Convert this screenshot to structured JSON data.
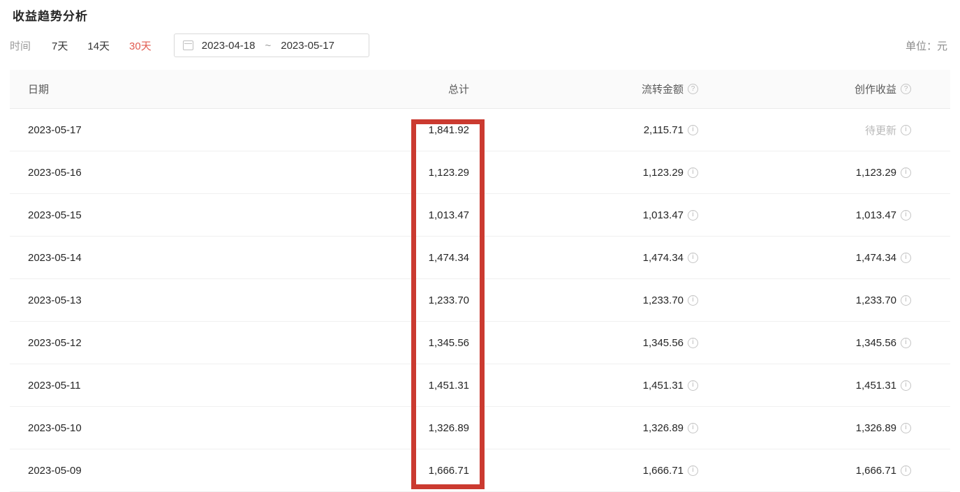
{
  "page": {
    "title": "收益趋势分析",
    "unit_label": "单位：元"
  },
  "filters": {
    "label": "时间",
    "tabs": [
      {
        "label": "7天",
        "active": false
      },
      {
        "label": "14天",
        "active": false
      },
      {
        "label": "30天",
        "active": true
      }
    ],
    "date_range": {
      "start": "2023-04-18",
      "separator": "~",
      "end": "2023-05-17"
    }
  },
  "table": {
    "columns": [
      {
        "label": "日期"
      },
      {
        "label": "总计"
      },
      {
        "label": "流转金额",
        "help": true
      },
      {
        "label": "创作收益",
        "help": true
      }
    ],
    "rows": [
      {
        "date": "2023-05-17",
        "total": "1,841.92",
        "transfer": "2,115.71",
        "creation": "待更新",
        "creation_pending": true
      },
      {
        "date": "2023-05-16",
        "total": "1,123.29",
        "transfer": "1,123.29",
        "creation": "1,123.29"
      },
      {
        "date": "2023-05-15",
        "total": "1,013.47",
        "transfer": "1,013.47",
        "creation": "1,013.47"
      },
      {
        "date": "2023-05-14",
        "total": "1,474.34",
        "transfer": "1,474.34",
        "creation": "1,474.34"
      },
      {
        "date": "2023-05-13",
        "total": "1,233.70",
        "transfer": "1,233.70",
        "creation": "1,233.70"
      },
      {
        "date": "2023-05-12",
        "total": "1,345.56",
        "transfer": "1,345.56",
        "creation": "1,345.56"
      },
      {
        "date": "2023-05-11",
        "total": "1,451.31",
        "transfer": "1,451.31",
        "creation": "1,451.31"
      },
      {
        "date": "2023-05-10",
        "total": "1,326.89",
        "transfer": "1,326.89",
        "creation": "1,326.89"
      },
      {
        "date": "2023-05-09",
        "total": "1,666.71",
        "transfer": "1,666.71",
        "creation": "1,666.71"
      }
    ]
  },
  "icons": {
    "help_glyph": "?",
    "info_glyph": "i"
  },
  "annotation": {
    "type": "highlight-box",
    "highlighted_column": "总计",
    "color": "#cb3a30"
  },
  "colors": {
    "accent_red": "#e15b50",
    "highlight_box_red": "#cb3a30",
    "header_bg": "#fafafa"
  }
}
